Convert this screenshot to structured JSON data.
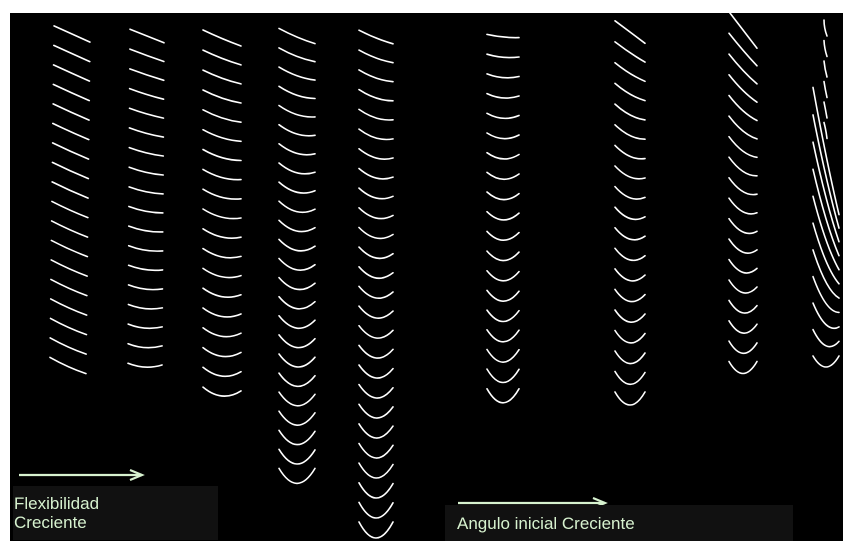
{
  "colors": {
    "background": "#000000",
    "curve": "#ffffff",
    "arrow": "#d7f2cf",
    "label_text": "#d7f2cf",
    "label_box": "#111111"
  },
  "labels": {
    "flexibility_line1": "Flexibilidad",
    "flexibility_line2": "Creciente",
    "initial_angle": "Angulo inicial Creciente"
  },
  "groups": [
    {
      "frames": 18,
      "group": "flexibility",
      "level": 1
    },
    {
      "frames": 18,
      "group": "flexibility",
      "level": 2
    },
    {
      "frames": 19,
      "group": "flexibility",
      "level": 3
    },
    {
      "frames": 24,
      "group": "flexibility",
      "level": 4
    },
    {
      "frames": 26,
      "group": "flexibility",
      "level": 5
    },
    {
      "frames": 19,
      "group": "initial_angle",
      "level": 1
    },
    {
      "frames": 19,
      "group": "initial_angle",
      "level": 2
    },
    {
      "frames": 18,
      "group": "initial_angle",
      "level": 3
    },
    {
      "frames": 17,
      "group": "initial_angle",
      "level": 4
    }
  ]
}
